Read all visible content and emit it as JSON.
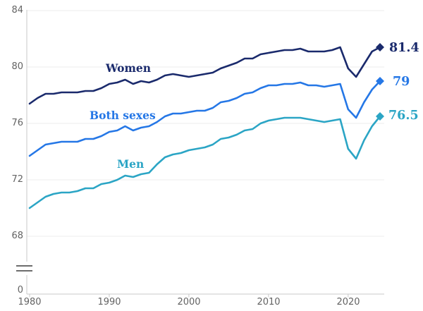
{
  "chart_data": {
    "type": "line",
    "title": "",
    "xlabel": "",
    "ylabel": "",
    "grid": "horizontal",
    "legend_position": "inline-labels-and-end-values",
    "axis_break_between": [
      68,
      0
    ],
    "ylim_display": [
      68,
      84
    ],
    "y_ticks": [
      "84",
      "80",
      "76",
      "72",
      "68",
      "0"
    ],
    "y_gridline_values": [
      84,
      80,
      76,
      72,
      68
    ],
    "x_ticks": [
      "1980",
      "1990",
      "2000",
      "2010",
      "2020"
    ],
    "x_tick_years": [
      1980,
      1990,
      2000,
      2010,
      2020
    ],
    "x": [
      1980,
      1981,
      1982,
      1983,
      1984,
      1985,
      1986,
      1987,
      1988,
      1989,
      1990,
      1991,
      1992,
      1993,
      1994,
      1995,
      1996,
      1997,
      1998,
      1999,
      2000,
      2001,
      2002,
      2003,
      2004,
      2005,
      2006,
      2007,
      2008,
      2009,
      2010,
      2011,
      2012,
      2013,
      2014,
      2015,
      2016,
      2017,
      2018,
      2019,
      2020,
      2021,
      2022,
      2023,
      2024
    ],
    "series": [
      {
        "name": "Women",
        "color": "#1a2a6c",
        "end_label": "81.4",
        "end_value": 81.4,
        "marker": "diamond",
        "values": [
          77.4,
          77.8,
          78.1,
          78.1,
          78.2,
          78.2,
          78.2,
          78.3,
          78.3,
          78.5,
          78.8,
          78.9,
          79.1,
          78.8,
          79.0,
          78.9,
          79.1,
          79.4,
          79.5,
          79.4,
          79.3,
          79.4,
          79.5,
          79.6,
          79.9,
          80.1,
          80.3,
          80.6,
          80.6,
          80.9,
          81.0,
          81.1,
          81.2,
          81.2,
          81.3,
          81.1,
          81.1,
          81.1,
          81.2,
          81.4,
          79.9,
          79.3,
          80.2,
          81.1,
          81.4
        ]
      },
      {
        "name": "Both sexes",
        "color": "#2577e6",
        "end_label": "79",
        "end_value": 79,
        "marker": "diamond",
        "values": [
          73.7,
          74.1,
          74.5,
          74.6,
          74.7,
          74.7,
          74.7,
          74.9,
          74.9,
          75.1,
          75.4,
          75.5,
          75.8,
          75.5,
          75.7,
          75.8,
          76.1,
          76.5,
          76.7,
          76.7,
          76.8,
          76.9,
          76.9,
          77.1,
          77.5,
          77.6,
          77.8,
          78.1,
          78.2,
          78.5,
          78.7,
          78.7,
          78.8,
          78.8,
          78.9,
          78.7,
          78.7,
          78.6,
          78.7,
          78.8,
          77.0,
          76.4,
          77.5,
          78.4,
          79.0
        ]
      },
      {
        "name": "Men",
        "color": "#2ba5c5",
        "end_label": "76.5",
        "end_value": 76.5,
        "marker": "diamond",
        "values": [
          70.0,
          70.4,
          70.8,
          71.0,
          71.1,
          71.1,
          71.2,
          71.4,
          71.4,
          71.7,
          71.8,
          72.0,
          72.3,
          72.2,
          72.4,
          72.5,
          73.1,
          73.6,
          73.8,
          73.9,
          74.1,
          74.2,
          74.3,
          74.5,
          74.9,
          75.0,
          75.2,
          75.5,
          75.6,
          76.0,
          76.2,
          76.3,
          76.4,
          76.4,
          76.4,
          76.3,
          76.2,
          76.1,
          76.2,
          76.3,
          74.2,
          73.5,
          74.8,
          75.8,
          76.5
        ]
      }
    ],
    "style_colors": {
      "axis": "#c9c9c9",
      "gridline": "#ededed",
      "tick_text": "#636363",
      "axis_break_marks": "#3d3d3d"
    }
  }
}
